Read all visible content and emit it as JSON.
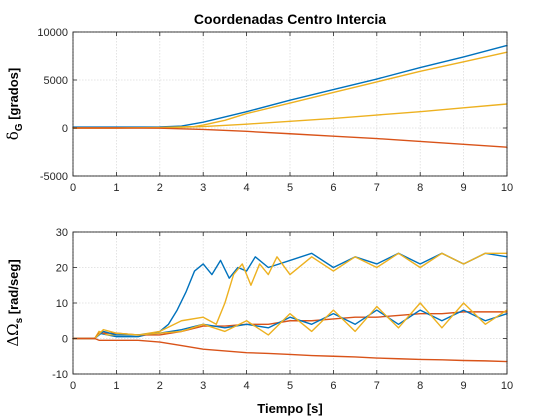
{
  "chart_data": [
    {
      "type": "line",
      "title": "Coordenadas Centro Intercia",
      "xlabel": "",
      "ylabel": "δ_G [grados]",
      "ylabel_main": "δ",
      "ylabel_sub": "G",
      "ylabel_unit": " [grados]",
      "xlim": [
        0,
        10
      ],
      "ylim": [
        -5000,
        10000
      ],
      "xticks": [
        "0",
        "1",
        "2",
        "3",
        "4",
        "5",
        "6",
        "7",
        "8",
        "9",
        "10"
      ],
      "yticks": [
        "-5000",
        "0",
        "5000",
        "10000"
      ],
      "grid": true,
      "series": [
        {
          "color": "#0072BD",
          "x": [
            0,
            1,
            2,
            2.5,
            3,
            4,
            5,
            6,
            7,
            8,
            9,
            10
          ],
          "y": [
            100,
            100,
            110,
            200,
            600,
            1700,
            2900,
            4000,
            5100,
            6300,
            7400,
            8600
          ]
        },
        {
          "color": "#EDB120",
          "x": [
            0,
            1,
            2,
            2.8,
            3,
            3.5,
            4,
            5,
            6,
            7,
            8,
            9,
            10
          ],
          "y": [
            0,
            0,
            50,
            150,
            300,
            800,
            1500,
            2600,
            3700,
            4800,
            5900,
            6900,
            7900
          ]
        },
        {
          "color": "#EDB120",
          "x": [
            0,
            1,
            2,
            2.5,
            3,
            4,
            5,
            6,
            7,
            8,
            9,
            10
          ],
          "y": [
            0,
            0,
            30,
            80,
            150,
            400,
            700,
            1000,
            1350,
            1700,
            2100,
            2500
          ]
        },
        {
          "color": "#D95319",
          "x": [
            0,
            1,
            2,
            2.5,
            3,
            4,
            5,
            6,
            7,
            8,
            9,
            10
          ],
          "y": [
            0,
            0,
            -20,
            -80,
            -150,
            -350,
            -600,
            -850,
            -1100,
            -1400,
            -1700,
            -2000
          ]
        }
      ]
    },
    {
      "type": "line",
      "title": "",
      "xlabel": "Tiempo [s]",
      "ylabel": "ΔΩ_s [rad/seg]",
      "ylabel_main": "ΔΩ",
      "ylabel_sub": "s",
      "ylabel_unit": " [rad/seg]",
      "xlim": [
        0,
        10
      ],
      "ylim": [
        -10,
        30
      ],
      "xticks": [
        "0",
        "1",
        "2",
        "3",
        "4",
        "5",
        "6",
        "7",
        "8",
        "9",
        "10"
      ],
      "yticks": [
        "-10",
        "0",
        "10",
        "20",
        "30"
      ],
      "grid": true,
      "series": [
        {
          "color": "#0072BD",
          "x": [
            0,
            0.5,
            0.6,
            0.8,
            1,
            1.5,
            2,
            2.2,
            2.4,
            2.6,
            2.8,
            3.0,
            3.2,
            3.4,
            3.6,
            3.8,
            4.0,
            4.2,
            4.5,
            5,
            5.5,
            6,
            6.5,
            7,
            7.5,
            8,
            8.5,
            9,
            9.5,
            10
          ],
          "y": [
            0,
            0,
            1.5,
            1,
            0.5,
            0.5,
            2,
            4,
            8,
            13,
            19,
            21,
            18,
            22,
            17,
            20,
            19,
            23,
            20,
            22,
            24,
            20,
            23,
            21,
            24,
            21,
            24,
            21,
            24,
            23
          ]
        },
        {
          "color": "#EDB120",
          "x": [
            0,
            0.5,
            0.6,
            0.8,
            1,
            1.5,
            2,
            2.5,
            3,
            3.3,
            3.5,
            3.7,
            3.9,
            4.1,
            4.3,
            4.5,
            4.7,
            5,
            5.5,
            6,
            6.5,
            7,
            7.5,
            8,
            8.5,
            9,
            9.5,
            10
          ],
          "y": [
            0,
            0,
            2,
            1,
            1,
            1,
            2,
            5,
            6,
            4,
            10,
            18,
            21,
            15,
            21,
            18,
            23,
            18,
            23,
            19,
            23,
            20,
            24,
            20,
            24,
            21,
            24,
            24
          ]
        },
        {
          "color": "#D95319",
          "x": [
            0,
            0.5,
            0.6,
            1,
            1.5,
            2,
            2.5,
            3,
            3.5,
            4,
            4.5,
            5,
            5.5,
            6,
            6.5,
            7,
            7.5,
            8,
            8.5,
            9,
            9.5,
            10
          ],
          "y": [
            0,
            0,
            1.5,
            1.5,
            1,
            1,
            2,
            3.5,
            3.5,
            4,
            4,
            5,
            5,
            5.5,
            6,
            6,
            6.5,
            7,
            7,
            7.5,
            7.5,
            7.5
          ]
        },
        {
          "color": "#0072BD",
          "x": [
            0,
            0.5,
            0.7,
            1,
            1.5,
            2,
            2.5,
            3,
            3.5,
            4,
            4.5,
            5,
            5.5,
            6,
            6.5,
            7,
            7.5,
            8,
            8.5,
            9,
            9.5,
            10
          ],
          "y": [
            0,
            0,
            2,
            1,
            1,
            1.5,
            2.5,
            4,
            3,
            4,
            3,
            6,
            4,
            7,
            4,
            8,
            4,
            8,
            5,
            8,
            5,
            7
          ]
        },
        {
          "color": "#EDB120",
          "x": [
            0,
            0.5,
            0.7,
            1,
            1.5,
            2,
            2.5,
            3,
            3.5,
            4,
            4.5,
            5,
            5.5,
            6,
            6.5,
            7,
            7.5,
            8,
            8.5,
            9,
            9.5,
            10
          ],
          "y": [
            0,
            0,
            2.5,
            1.5,
            1,
            1.5,
            2,
            4,
            2,
            5,
            1,
            7,
            2,
            8,
            2,
            9,
            3,
            10,
            3,
            10,
            4,
            8
          ]
        },
        {
          "color": "#D95319",
          "x": [
            0,
            0.5,
            0.6,
            1,
            1.5,
            2,
            2.5,
            3,
            3.5,
            4,
            4.5,
            5,
            5.5,
            6,
            6.5,
            7,
            7.5,
            8,
            8.5,
            9,
            9.5,
            10
          ],
          "y": [
            0,
            0,
            -0.5,
            -0.5,
            -0.5,
            -1,
            -2,
            -3,
            -3.5,
            -4,
            -4.2,
            -4.5,
            -4.8,
            -5,
            -5.2,
            -5.5,
            -5.7,
            -5.9,
            -6,
            -6.2,
            -6.3,
            -6.5
          ]
        }
      ]
    }
  ]
}
